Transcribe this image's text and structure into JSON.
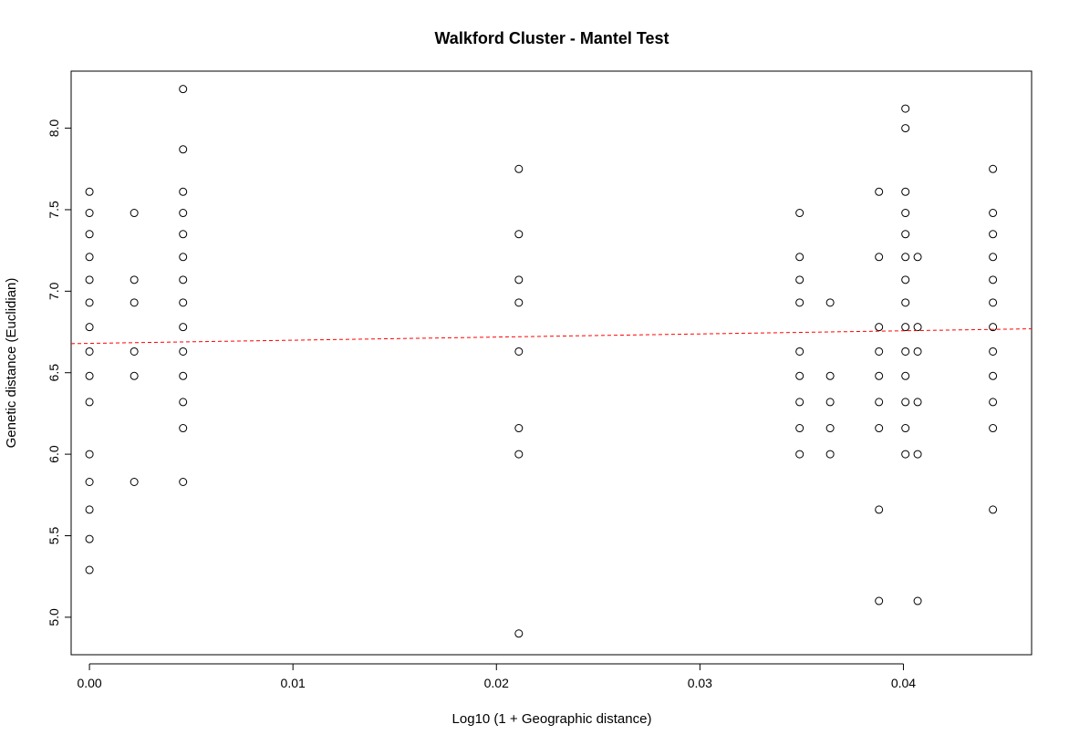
{
  "chart_data": {
    "type": "scatter",
    "title": "Walkford Cluster - Mantel Test",
    "xlabel": "Log10 (1 + Geographic distance)",
    "ylabel": "Genetic distance (Euclidian)",
    "xlim": [
      -0.0009,
      0.0463
    ],
    "ylim": [
      4.77,
      8.35
    ],
    "x_ticks": [
      0.0,
      0.01,
      0.02,
      0.03,
      0.04
    ],
    "x_tick_labels": [
      "0.00",
      "0.01",
      "0.02",
      "0.03",
      "0.04"
    ],
    "y_ticks": [
      5.0,
      5.5,
      6.0,
      6.5,
      7.0,
      7.5,
      8.0
    ],
    "y_tick_labels": [
      "5.0",
      "5.5",
      "6.0",
      "6.5",
      "7.0",
      "7.5",
      "8.0"
    ],
    "grid": false,
    "regression_line": {
      "color": "#ff0000",
      "style": "dashed",
      "intercept": 6.68,
      "slope": 1.93
    },
    "points": [
      {
        "x": 0.0,
        "y": 7.61
      },
      {
        "x": 0.0,
        "y": 7.48
      },
      {
        "x": 0.0,
        "y": 7.35
      },
      {
        "x": 0.0,
        "y": 7.21
      },
      {
        "x": 0.0,
        "y": 7.07
      },
      {
        "x": 0.0,
        "y": 6.93
      },
      {
        "x": 0.0,
        "y": 6.78
      },
      {
        "x": 0.0,
        "y": 6.63
      },
      {
        "x": 0.0,
        "y": 6.48
      },
      {
        "x": 0.0,
        "y": 6.32
      },
      {
        "x": 0.0,
        "y": 6.0
      },
      {
        "x": 0.0,
        "y": 5.83
      },
      {
        "x": 0.0,
        "y": 5.66
      },
      {
        "x": 0.0,
        "y": 5.48
      },
      {
        "x": 0.0,
        "y": 5.29
      },
      {
        "x": 0.0022,
        "y": 7.48
      },
      {
        "x": 0.0022,
        "y": 7.07
      },
      {
        "x": 0.0022,
        "y": 6.93
      },
      {
        "x": 0.0022,
        "y": 6.63
      },
      {
        "x": 0.0022,
        "y": 6.48
      },
      {
        "x": 0.0022,
        "y": 5.83
      },
      {
        "x": 0.0046,
        "y": 8.24
      },
      {
        "x": 0.0046,
        "y": 7.87
      },
      {
        "x": 0.0046,
        "y": 7.61
      },
      {
        "x": 0.0046,
        "y": 7.48
      },
      {
        "x": 0.0046,
        "y": 7.35
      },
      {
        "x": 0.0046,
        "y": 7.21
      },
      {
        "x": 0.0046,
        "y": 7.07
      },
      {
        "x": 0.0046,
        "y": 6.93
      },
      {
        "x": 0.0046,
        "y": 6.78
      },
      {
        "x": 0.0046,
        "y": 6.63
      },
      {
        "x": 0.0046,
        "y": 6.48
      },
      {
        "x": 0.0046,
        "y": 6.32
      },
      {
        "x": 0.0046,
        "y": 6.16
      },
      {
        "x": 0.0046,
        "y": 5.83
      },
      {
        "x": 0.0211,
        "y": 7.75
      },
      {
        "x": 0.0211,
        "y": 7.35
      },
      {
        "x": 0.0211,
        "y": 7.07
      },
      {
        "x": 0.0211,
        "y": 6.93
      },
      {
        "x": 0.0211,
        "y": 6.63
      },
      {
        "x": 0.0211,
        "y": 6.16
      },
      {
        "x": 0.0211,
        "y": 6.0
      },
      {
        "x": 0.0211,
        "y": 4.9
      },
      {
        "x": 0.0349,
        "y": 7.48
      },
      {
        "x": 0.0349,
        "y": 7.21
      },
      {
        "x": 0.0349,
        "y": 7.07
      },
      {
        "x": 0.0349,
        "y": 6.93
      },
      {
        "x": 0.0349,
        "y": 6.63
      },
      {
        "x": 0.0349,
        "y": 6.48
      },
      {
        "x": 0.0349,
        "y": 6.32
      },
      {
        "x": 0.0349,
        "y": 6.16
      },
      {
        "x": 0.0349,
        "y": 6.0
      },
      {
        "x": 0.0364,
        "y": 6.93
      },
      {
        "x": 0.0364,
        "y": 6.48
      },
      {
        "x": 0.0364,
        "y": 6.32
      },
      {
        "x": 0.0364,
        "y": 6.16
      },
      {
        "x": 0.0364,
        "y": 6.0
      },
      {
        "x": 0.0388,
        "y": 7.61
      },
      {
        "x": 0.0388,
        "y": 7.21
      },
      {
        "x": 0.0388,
        "y": 6.78
      },
      {
        "x": 0.0388,
        "y": 6.63
      },
      {
        "x": 0.0388,
        "y": 6.48
      },
      {
        "x": 0.0388,
        "y": 6.32
      },
      {
        "x": 0.0388,
        "y": 6.16
      },
      {
        "x": 0.0388,
        "y": 5.66
      },
      {
        "x": 0.0388,
        "y": 5.1
      },
      {
        "x": 0.0401,
        "y": 8.12
      },
      {
        "x": 0.0401,
        "y": 8.0
      },
      {
        "x": 0.0401,
        "y": 7.61
      },
      {
        "x": 0.0401,
        "y": 7.48
      },
      {
        "x": 0.0401,
        "y": 7.35
      },
      {
        "x": 0.0401,
        "y": 7.21
      },
      {
        "x": 0.0401,
        "y": 7.07
      },
      {
        "x": 0.0401,
        "y": 6.93
      },
      {
        "x": 0.0401,
        "y": 6.78
      },
      {
        "x": 0.0401,
        "y": 6.63
      },
      {
        "x": 0.0401,
        "y": 6.48
      },
      {
        "x": 0.0401,
        "y": 6.32
      },
      {
        "x": 0.0401,
        "y": 6.16
      },
      {
        "x": 0.0401,
        "y": 6.0
      },
      {
        "x": 0.0407,
        "y": 7.21
      },
      {
        "x": 0.0407,
        "y": 6.78
      },
      {
        "x": 0.0407,
        "y": 6.63
      },
      {
        "x": 0.0407,
        "y": 6.32
      },
      {
        "x": 0.0407,
        "y": 6.0
      },
      {
        "x": 0.0407,
        "y": 5.1
      },
      {
        "x": 0.0444,
        "y": 7.75
      },
      {
        "x": 0.0444,
        "y": 7.48
      },
      {
        "x": 0.0444,
        "y": 7.35
      },
      {
        "x": 0.0444,
        "y": 7.21
      },
      {
        "x": 0.0444,
        "y": 7.07
      },
      {
        "x": 0.0444,
        "y": 6.93
      },
      {
        "x": 0.0444,
        "y": 6.78
      },
      {
        "x": 0.0444,
        "y": 6.63
      },
      {
        "x": 0.0444,
        "y": 6.48
      },
      {
        "x": 0.0444,
        "y": 6.32
      },
      {
        "x": 0.0444,
        "y": 6.16
      },
      {
        "x": 0.0444,
        "y": 5.66
      }
    ]
  }
}
